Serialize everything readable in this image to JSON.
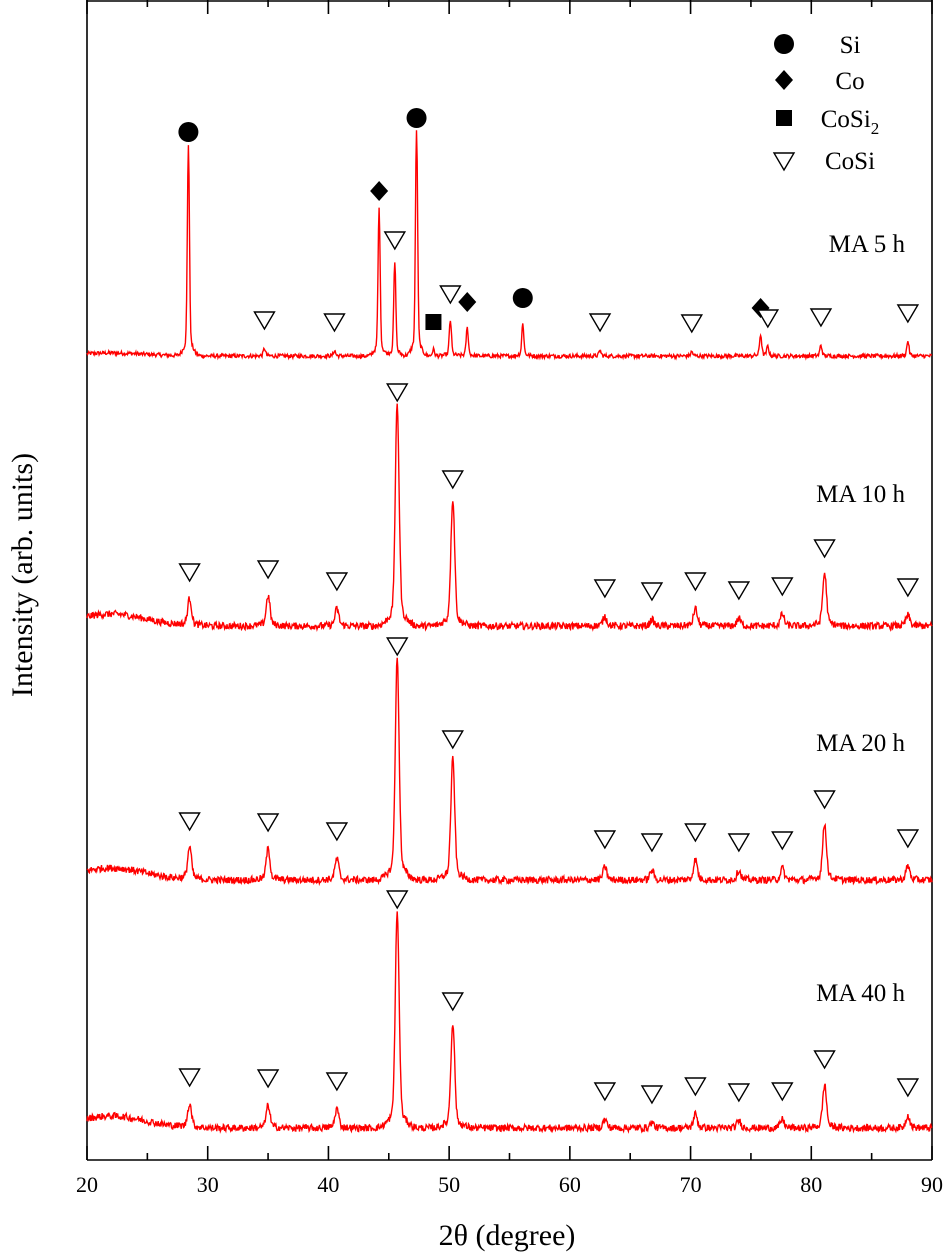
{
  "chart_data": {
    "type": "line",
    "xlabel": "2θ (degree)",
    "ylabel": "Intensity (arb. units)",
    "xlim": [
      20,
      90
    ],
    "x_ticks": [
      20,
      30,
      40,
      50,
      60,
      70,
      80,
      90
    ],
    "grid": false,
    "legend": {
      "placement": "top-right",
      "entries": [
        {
          "symbol": "circle",
          "label": "Si"
        },
        {
          "symbol": "diamond",
          "label": "Co"
        },
        {
          "symbol": "square",
          "label": "CoSi",
          "subscript": "2"
        },
        {
          "symbol": "triangle-down-open",
          "label": "CoSi"
        }
      ]
    },
    "series": [
      {
        "label": "MA 5 h",
        "baseline": 0,
        "peaks": [
          {
            "x": 28.4,
            "y": 196,
            "phase": "Si"
          },
          {
            "x": 34.7,
            "y": 7,
            "phase": "CoSi"
          },
          {
            "x": 40.5,
            "y": 5,
            "phase": "CoSi"
          },
          {
            "x": 44.2,
            "y": 137,
            "phase": "Co"
          },
          {
            "x": 45.5,
            "y": 87,
            "phase": "CoSi"
          },
          {
            "x": 47.3,
            "y": 210,
            "phase": "Si"
          },
          {
            "x": 48.7,
            "y": 6,
            "phase": "CoSi2"
          },
          {
            "x": 50.1,
            "y": 33,
            "phase": "CoSi"
          },
          {
            "x": 51.5,
            "y": 26,
            "phase": "Co"
          },
          {
            "x": 56.1,
            "y": 30,
            "phase": "Si"
          },
          {
            "x": 62.5,
            "y": 5,
            "phase": "CoSi"
          },
          {
            "x": 70.1,
            "y": 4,
            "phase": "CoSi"
          },
          {
            "x": 75.8,
            "y": 20,
            "phase": "Co"
          },
          {
            "x": 76.4,
            "y": 9,
            "phase": "CoSi"
          },
          {
            "x": 80.8,
            "y": 10,
            "phase": "CoSi"
          },
          {
            "x": 88.0,
            "y": 14,
            "phase": "CoSi"
          }
        ]
      },
      {
        "label": "MA 10 h",
        "baseline": 0,
        "peaks": [
          {
            "x": 28.5,
            "y": 25,
            "phase": "CoSi"
          },
          {
            "x": 35.0,
            "y": 28,
            "phase": "CoSi"
          },
          {
            "x": 40.7,
            "y": 16,
            "phase": "CoSi"
          },
          {
            "x": 45.7,
            "y": 205,
            "phase": "CoSi"
          },
          {
            "x": 50.3,
            "y": 118,
            "phase": "CoSi"
          },
          {
            "x": 62.9,
            "y": 9,
            "phase": "CoSi"
          },
          {
            "x": 66.8,
            "y": 6,
            "phase": "CoSi"
          },
          {
            "x": 70.4,
            "y": 16,
            "phase": "CoSi"
          },
          {
            "x": 74.0,
            "y": 7,
            "phase": "CoSi"
          },
          {
            "x": 77.6,
            "y": 11,
            "phase": "CoSi"
          },
          {
            "x": 81.1,
            "y": 49,
            "phase": "CoSi"
          },
          {
            "x": 88.0,
            "y": 10,
            "phase": "CoSi"
          }
        ]
      },
      {
        "label": "MA 20 h",
        "baseline": 0,
        "peaks": [
          {
            "x": 28.5,
            "y": 30,
            "phase": "CoSi"
          },
          {
            "x": 35.0,
            "y": 29,
            "phase": "CoSi"
          },
          {
            "x": 40.7,
            "y": 20,
            "phase": "CoSi"
          },
          {
            "x": 45.7,
            "y": 205,
            "phase": "CoSi"
          },
          {
            "x": 50.3,
            "y": 112,
            "phase": "CoSi"
          },
          {
            "x": 62.9,
            "y": 12,
            "phase": "CoSi"
          },
          {
            "x": 66.8,
            "y": 9,
            "phase": "CoSi"
          },
          {
            "x": 70.4,
            "y": 19,
            "phase": "CoSi"
          },
          {
            "x": 74.0,
            "y": 9,
            "phase": "CoSi"
          },
          {
            "x": 77.6,
            "y": 11,
            "phase": "CoSi"
          },
          {
            "x": 81.1,
            "y": 52,
            "phase": "CoSi"
          },
          {
            "x": 88.0,
            "y": 13,
            "phase": "CoSi"
          }
        ]
      },
      {
        "label": "MA 40 h",
        "baseline": 0,
        "peaks": [
          {
            "x": 28.5,
            "y": 22,
            "phase": "CoSi"
          },
          {
            "x": 35.0,
            "y": 21,
            "phase": "CoSi"
          },
          {
            "x": 40.7,
            "y": 18,
            "phase": "CoSi"
          },
          {
            "x": 45.7,
            "y": 200,
            "phase": "CoSi"
          },
          {
            "x": 50.3,
            "y": 98,
            "phase": "CoSi"
          },
          {
            "x": 62.9,
            "y": 8,
            "phase": "CoSi"
          },
          {
            "x": 66.8,
            "y": 5,
            "phase": "CoSi"
          },
          {
            "x": 70.4,
            "y": 13,
            "phase": "CoSi"
          },
          {
            "x": 74.0,
            "y": 7,
            "phase": "CoSi"
          },
          {
            "x": 77.6,
            "y": 8,
            "phase": "CoSi"
          },
          {
            "x": 81.1,
            "y": 40,
            "phase": "CoSi"
          },
          {
            "x": 88.0,
            "y": 12,
            "phase": "CoSi"
          }
        ]
      }
    ],
    "line_color": "#ff0000"
  }
}
